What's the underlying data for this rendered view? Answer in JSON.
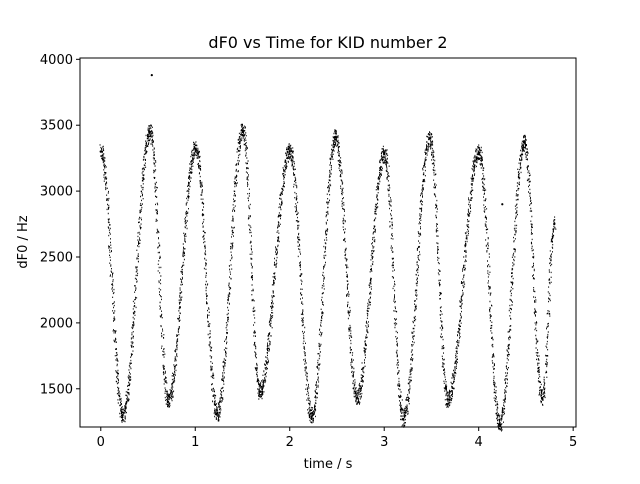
{
  "chart_data": {
    "type": "scatter",
    "title": "dF0 vs Time for KID number 2",
    "xlabel": "time / s",
    "ylabel": "dF0 / Hz",
    "xlim": [
      -0.22,
      5.03
    ],
    "ylim": [
      1210,
      4010
    ],
    "xticks": [
      0,
      1,
      2,
      3,
      4,
      5
    ],
    "xtick_labels": [
      "0",
      "1",
      "2",
      "3",
      "4",
      "5"
    ],
    "yticks": [
      1500,
      2000,
      2500,
      3000,
      3500,
      4000
    ],
    "ytick_labels": [
      "1500",
      "2000",
      "2500",
      "3000",
      "3500",
      "4000"
    ],
    "grid": false,
    "legend": "none",
    "marker_color": "#000000",
    "cycle_minima": [
      {
        "t": 0.23,
        "value": 1300
      },
      {
        "t": 0.71,
        "value": 1400
      },
      {
        "t": 1.23,
        "value": 1310
      },
      {
        "t": 1.68,
        "value": 1480
      },
      {
        "t": 2.23,
        "value": 1290
      },
      {
        "t": 2.71,
        "value": 1430
      },
      {
        "t": 3.2,
        "value": 1270
      },
      {
        "t": 3.67,
        "value": 1420
      },
      {
        "t": 4.22,
        "value": 1230
      },
      {
        "t": 4.67,
        "value": 1430
      }
    ],
    "cycle_maxima": [
      {
        "t": 0.0,
        "value": 3300
      },
      {
        "t": 0.52,
        "value": 3450
      },
      {
        "t": 1.0,
        "value": 3320
      },
      {
        "t": 1.5,
        "value": 3460
      },
      {
        "t": 2.0,
        "value": 3300
      },
      {
        "t": 2.48,
        "value": 3410
      },
      {
        "t": 3.0,
        "value": 3280
      },
      {
        "t": 3.48,
        "value": 3400
      },
      {
        "t": 4.0,
        "value": 3290
      },
      {
        "t": 4.48,
        "value": 3370
      },
      {
        "t": 4.8,
        "value": 2750
      }
    ],
    "outliers": [
      {
        "t": 0.54,
        "value": 3880
      },
      {
        "t": 4.25,
        "value": 2900
      }
    ]
  }
}
